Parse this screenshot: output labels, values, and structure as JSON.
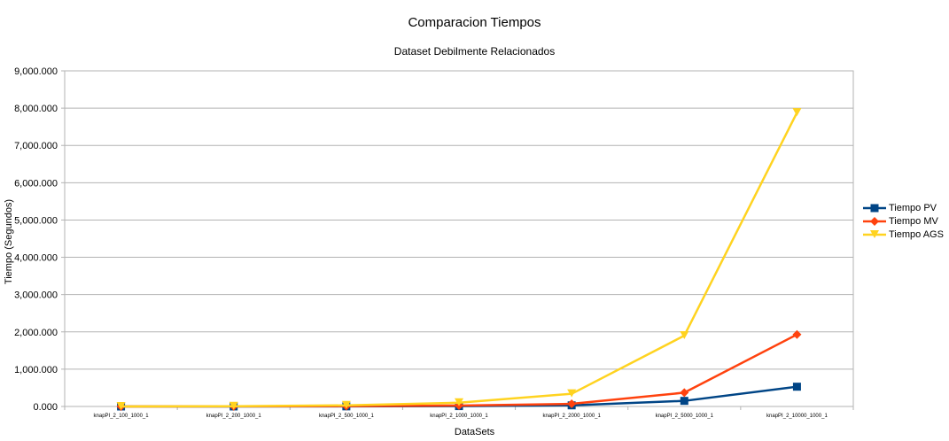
{
  "chart_data": {
    "type": "line",
    "title": "Comparacion Tiempos",
    "subtitle": "Dataset Debilmente Relacionados",
    "xlabel": "DataSets",
    "ylabel": "Tiempo (Segundos)",
    "categories": [
      "knapPI_2_100_1000_1",
      "knapPI_2_200_1000_1",
      "knapPI_2_500_1000_1",
      "knapPI_2_1000_1000_1",
      "knapPI_2_2000_1000_1",
      "knapPI_2_5000_1000_1",
      "knapPI_2_10000_1000_1"
    ],
    "ylim": [
      0,
      9000
    ],
    "yticks": [
      0,
      1000,
      2000,
      3000,
      4000,
      5000,
      6000,
      7000,
      8000,
      9000
    ],
    "ytick_labels": [
      "0.000",
      "1,000.000",
      "2,000.000",
      "3,000.000",
      "4,000.000",
      "5,000.000",
      "6,000.000",
      "7,000.000",
      "8,000.000",
      "9,000.000"
    ],
    "grid": true,
    "legend_position": "right",
    "series": [
      {
        "name": "Tiempo PV",
        "color": "#004586",
        "marker": "square",
        "values": [
          0.2,
          0.8,
          3,
          10,
          30,
          150,
          530
        ]
      },
      {
        "name": "Tiempo MV",
        "color": "#ff420e",
        "marker": "diamond",
        "values": [
          0.5,
          2,
          8,
          25,
          70,
          370,
          1930
        ]
      },
      {
        "name": "Tiempo AGS",
        "color": "#ffd320",
        "marker": "triangle-down",
        "values": [
          1,
          5,
          30,
          100,
          340,
          1900,
          7880
        ]
      }
    ]
  }
}
